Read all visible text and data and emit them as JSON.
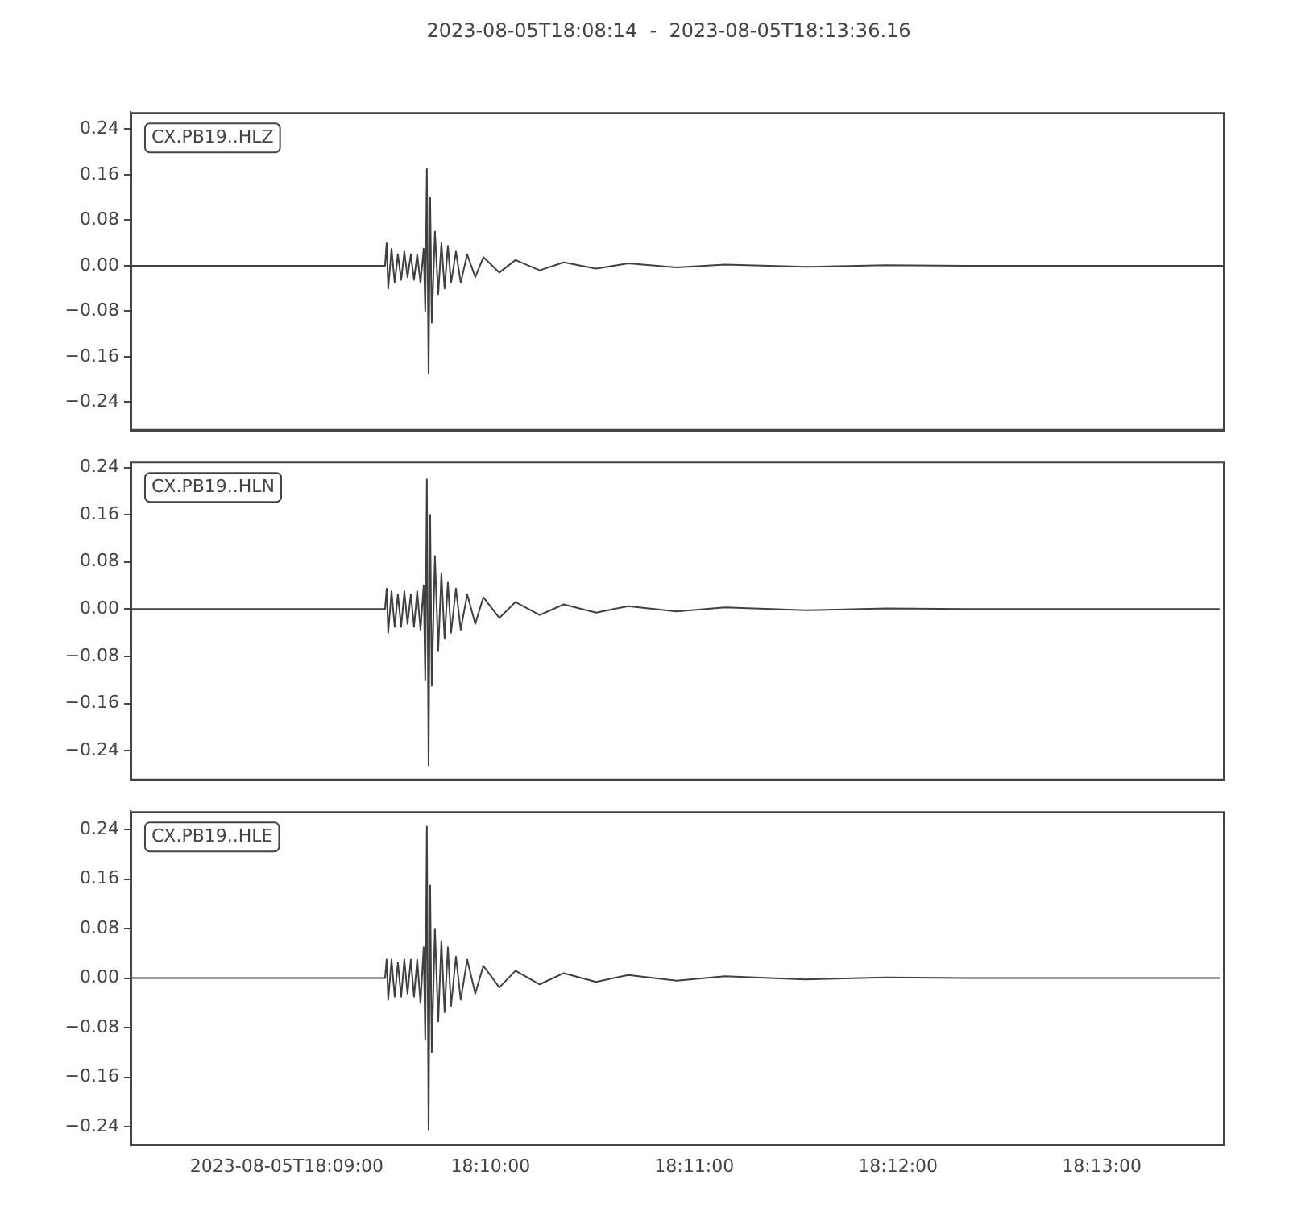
{
  "chart_data": [
    {
      "type": "line",
      "title": "2023-08-05T18:08:14  -  2023-08-05T18:13:36.16",
      "annotations": [
        "CX.PB19..HLZ"
      ],
      "grid": false,
      "legend": false,
      "marker": "none",
      "line_style": "solid",
      "tick_labels": "y",
      "x": [
        18.13722,
        18.15804,
        18.15817,
        18.1583,
        18.15857,
        18.15883,
        18.15909,
        18.15936,
        18.15962,
        18.15988,
        18.16015,
        18.16041,
        18.16067,
        18.16094,
        18.1612,
        18.16133,
        18.16146,
        18.1616,
        18.16173,
        18.16186,
        18.16212,
        18.16239,
        18.16265,
        18.16291,
        18.16318,
        18.16344,
        18.16384,
        18.16423,
        18.16476,
        18.16542,
        18.16608,
        18.16739,
        18.16871,
        18.17069,
        18.17266,
        18.1753,
        18.17793,
        18.18189,
        18.18584,
        18.19243,
        18.19901,
        18.2056,
        18.2267
      ],
      "xlim": [
        18.13722,
        18.22671
      ],
      "ylim": [
        -0.29,
        0.27
      ],
      "yticks": [
        {
          "value": -0.24,
          "label": "−0.24"
        },
        {
          "value": -0.16,
          "label": "−0.16"
        },
        {
          "value": -0.08,
          "label": "−0.08"
        },
        {
          "value": 0,
          "label": "0.00"
        },
        0.08,
        0.16,
        0.24
      ],
      "series": [
        {
          "color": "#404040",
          "values": [
            0,
            0,
            0.04,
            -0.04,
            0.03,
            -0.03,
            0.02,
            -0.025,
            0.025,
            -0.02,
            0.02,
            -0.025,
            0.02,
            -0.03,
            0.03,
            -0.08,
            0.17,
            -0.19,
            0.12,
            -0.1,
            0.06,
            -0.05,
            0.04,
            -0.04,
            0.035,
            -0.03,
            0.025,
            -0.03,
            0.02,
            -0.02,
            0.015,
            -0.012,
            0.01,
            -0.008,
            0.006,
            -0.005,
            0.004,
            -0.003,
            0.002,
            -0.002,
            0.001,
            0,
            0
          ]
        }
      ]
    },
    {
      "type": "line",
      "annotations": [
        "CX.PB19..HLN"
      ],
      "grid": false,
      "legend": false,
      "marker": "none",
      "line_style": "solid",
      "tick_labels": "y",
      "x": [
        18.13722,
        18.15804,
        18.15817,
        18.1583,
        18.15857,
        18.15883,
        18.15909,
        18.15936,
        18.15962,
        18.15988,
        18.16015,
        18.16041,
        18.16067,
        18.16094,
        18.1612,
        18.16133,
        18.16146,
        18.1616,
        18.16173,
        18.16186,
        18.16212,
        18.16239,
        18.16265,
        18.16291,
        18.16318,
        18.16344,
        18.16384,
        18.16423,
        18.16476,
        18.16542,
        18.16608,
        18.16739,
        18.16871,
        18.17069,
        18.17266,
        18.1753,
        18.17793,
        18.18189,
        18.18584,
        18.19243,
        18.19901,
        18.2056,
        18.2263
      ],
      "xlim": [
        18.13722,
        18.22671
      ],
      "ylim": [
        -0.29,
        0.25
      ],
      "yticks": [
        {
          "value": -0.24,
          "label": "−0.24"
        },
        {
          "value": -0.16,
          "label": "−0.16"
        },
        {
          "value": -0.08,
          "label": "−0.08"
        },
        {
          "value": 0,
          "label": "0.00"
        },
        0.08,
        0.16,
        0.24
      ],
      "series": [
        {
          "color": "#404040",
          "values": [
            0,
            0,
            0.035,
            -0.04,
            0.03,
            -0.03,
            0.025,
            -0.03,
            0.03,
            -0.025,
            0.025,
            -0.03,
            0.03,
            -0.035,
            0.04,
            -0.12,
            0.22,
            -0.265,
            0.16,
            -0.13,
            0.09,
            -0.07,
            0.06,
            -0.05,
            0.045,
            -0.04,
            0.035,
            -0.035,
            0.025,
            -0.025,
            0.02,
            -0.015,
            0.012,
            -0.01,
            0.008,
            -0.006,
            0.005,
            -0.004,
            0.003,
            -0.002,
            0.001,
            0,
            0
          ]
        }
      ]
    },
    {
      "type": "line",
      "annotations": [
        "CX.PB19..HLE"
      ],
      "grid": false,
      "legend": false,
      "marker": "none",
      "line_style": "solid",
      "x": [
        18.13722,
        18.15804,
        18.15817,
        18.1583,
        18.15857,
        18.15883,
        18.15909,
        18.15936,
        18.15962,
        18.15988,
        18.16015,
        18.16041,
        18.16067,
        18.16094,
        18.1612,
        18.16133,
        18.16146,
        18.1616,
        18.16173,
        18.16186,
        18.16212,
        18.16239,
        18.16265,
        18.16291,
        18.16318,
        18.16344,
        18.16384,
        18.16423,
        18.16476,
        18.16542,
        18.16608,
        18.16739,
        18.16871,
        18.17069,
        18.17266,
        18.1753,
        18.17793,
        18.18189,
        18.18584,
        18.19243,
        18.19901,
        18.2056,
        18.2263
      ],
      "xlim": [
        18.13722,
        18.22671
      ],
      "xticks": [
        {
          "value": 18.15,
          "label": "2023-08-05T18:09:00"
        },
        {
          "value": 18.166667,
          "label": "18:10:00"
        },
        {
          "value": 18.183333,
          "label": "18:11:00"
        },
        {
          "value": 18.2,
          "label": "18:12:00"
        },
        {
          "value": 18.216667,
          "label": "18:13:00"
        }
      ],
      "ylim": [
        -0.27,
        0.27
      ],
      "yticks": [
        {
          "value": -0.24,
          "label": "−0.24"
        },
        {
          "value": -0.16,
          "label": "−0.16"
        },
        {
          "value": -0.08,
          "label": "−0.08"
        },
        {
          "value": 0,
          "label": "0.00"
        },
        0.08,
        0.16,
        0.24
      ],
      "series": [
        {
          "color": "#404040",
          "values": [
            0,
            0,
            0.03,
            -0.035,
            0.03,
            -0.03,
            0.025,
            -0.03,
            0.03,
            -0.025,
            0.03,
            -0.03,
            0.03,
            -0.04,
            0.05,
            -0.1,
            0.245,
            -0.245,
            0.15,
            -0.12,
            0.08,
            -0.07,
            0.06,
            -0.055,
            0.05,
            -0.045,
            0.035,
            -0.035,
            0.03,
            -0.025,
            0.02,
            -0.015,
            0.012,
            -0.01,
            0.008,
            -0.006,
            0.005,
            -0.004,
            0.003,
            -0.002,
            0.001,
            0,
            0
          ]
        }
      ]
    }
  ]
}
